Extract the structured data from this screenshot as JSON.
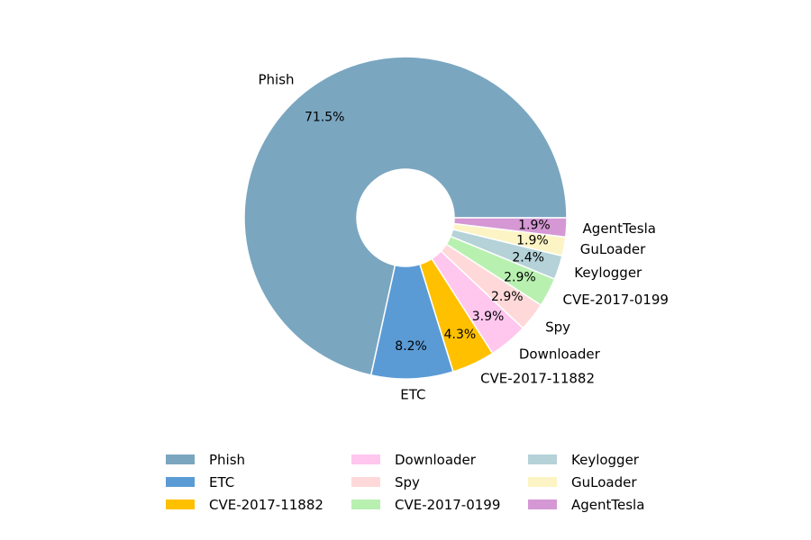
{
  "chart_data": {
    "type": "pie",
    "style": "donut",
    "title": "",
    "legend_placement": "bottom",
    "slices": [
      {
        "label": "Phish",
        "value": 71.5,
        "pct_label": "71.5%",
        "color": "#7aa6c0"
      },
      {
        "label": "ETC",
        "value": 8.2,
        "pct_label": "8.2%",
        "color": "#5b9bd5"
      },
      {
        "label": "CVE-2017-11882",
        "value": 4.3,
        "pct_label": "4.3%",
        "color": "#ffc000"
      },
      {
        "label": "Downloader",
        "value": 3.9,
        "pct_label": "3.9%",
        "color": "#ffc6ee"
      },
      {
        "label": "Spy",
        "value": 2.9,
        "pct_label": "2.9%",
        "color": "#ffd9d9"
      },
      {
        "label": "CVE-2017-0199",
        "value": 2.9,
        "pct_label": "2.9%",
        "color": "#b8f0b0"
      },
      {
        "label": "Keylogger",
        "value": 2.4,
        "pct_label": "2.4%",
        "color": "#b4d2d8"
      },
      {
        "label": "GuLoader",
        "value": 1.9,
        "pct_label": "1.9%",
        "color": "#fcf4c4"
      },
      {
        "label": "AgentTesla",
        "value": 1.9,
        "pct_label": "1.9%",
        "color": "#d598d4"
      }
    ]
  }
}
